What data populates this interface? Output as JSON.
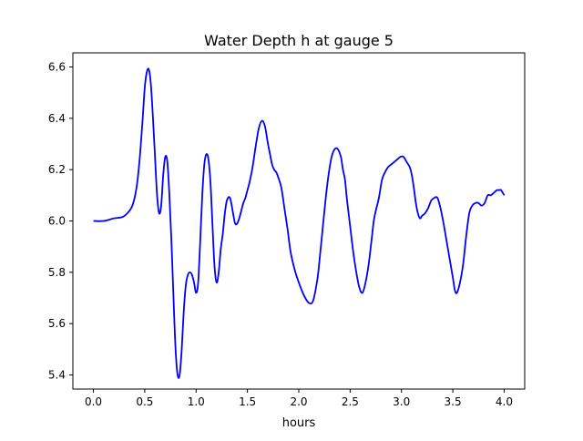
{
  "chart_data": {
    "type": "line",
    "title": "Water Depth h at gauge 5",
    "xlabel": "hours",
    "ylabel": "",
    "xlim": [
      -0.2,
      4.2
    ],
    "ylim": [
      5.345,
      6.655
    ],
    "xticks": [
      0.0,
      0.5,
      1.0,
      1.5,
      2.0,
      2.5,
      3.0,
      3.5,
      4.0
    ],
    "xtick_labels": [
      "0.0",
      "0.5",
      "1.0",
      "1.5",
      "2.0",
      "2.5",
      "3.0",
      "3.5",
      "4.0"
    ],
    "yticks": [
      5.4,
      5.6,
      5.8,
      6.0,
      6.2,
      6.4,
      6.6
    ],
    "ytick_labels": [
      "5.4",
      "5.6",
      "5.8",
      "6.0",
      "6.2",
      "6.4",
      "6.6"
    ],
    "grid": false,
    "legend": "none",
    "series": [
      {
        "color": "#0000ff",
        "x": [
          0.0,
          0.1,
          0.2,
          0.28,
          0.33,
          0.38,
          0.42,
          0.45,
          0.48,
          0.5,
          0.52,
          0.54,
          0.56,
          0.58,
          0.6,
          0.62,
          0.64,
          0.66,
          0.68,
          0.7,
          0.72,
          0.74,
          0.76,
          0.78,
          0.8,
          0.82,
          0.84,
          0.86,
          0.88,
          0.9,
          0.92,
          0.94,
          0.96,
          0.98,
          1.0,
          1.02,
          1.04,
          1.06,
          1.08,
          1.1,
          1.12,
          1.14,
          1.16,
          1.18,
          1.2,
          1.22,
          1.24,
          1.26,
          1.28,
          1.3,
          1.33,
          1.36,
          1.38,
          1.4,
          1.42,
          1.44,
          1.46,
          1.48,
          1.5,
          1.52,
          1.55,
          1.58,
          1.61,
          1.64,
          1.67,
          1.7,
          1.72,
          1.74,
          1.76,
          1.78,
          1.8,
          1.83,
          1.86,
          1.89,
          1.92,
          1.96,
          2.0,
          2.05,
          2.1,
          2.14,
          2.18,
          2.2,
          2.23,
          2.26,
          2.29,
          2.32,
          2.35,
          2.38,
          2.41,
          2.43,
          2.45,
          2.47,
          2.5,
          2.53,
          2.56,
          2.59,
          2.62,
          2.65,
          2.68,
          2.71,
          2.73,
          2.75,
          2.78,
          2.81,
          2.84,
          2.87,
          2.9,
          2.93,
          2.96,
          2.99,
          3.02,
          3.05,
          3.08,
          3.1,
          3.12,
          3.14,
          3.16,
          3.18,
          3.2,
          3.23,
          3.26,
          3.29,
          3.32,
          3.35,
          3.38,
          3.41,
          3.44,
          3.47,
          3.5,
          3.52,
          3.54,
          3.57,
          3.6,
          3.63,
          3.66,
          3.69,
          3.72,
          3.75,
          3.78,
          3.81,
          3.84,
          3.87,
          3.9,
          3.93,
          3.95,
          3.97,
          4.0
        ],
        "y": [
          6.0,
          6.0,
          6.01,
          6.015,
          6.03,
          6.06,
          6.13,
          6.24,
          6.4,
          6.52,
          6.58,
          6.59,
          6.53,
          6.4,
          6.25,
          6.1,
          6.03,
          6.06,
          6.18,
          6.25,
          6.23,
          6.1,
          5.92,
          5.7,
          5.5,
          5.4,
          5.4,
          5.5,
          5.65,
          5.75,
          5.79,
          5.8,
          5.79,
          5.76,
          5.72,
          5.76,
          5.92,
          6.1,
          6.22,
          6.26,
          6.24,
          6.15,
          5.98,
          5.82,
          5.76,
          5.8,
          5.89,
          5.95,
          6.03,
          6.08,
          6.09,
          6.03,
          5.99,
          5.99,
          6.01,
          6.04,
          6.07,
          6.09,
          6.12,
          6.15,
          6.21,
          6.29,
          6.36,
          6.39,
          6.37,
          6.3,
          6.26,
          6.22,
          6.2,
          6.19,
          6.17,
          6.13,
          6.05,
          5.97,
          5.88,
          5.81,
          5.76,
          5.71,
          5.68,
          5.69,
          5.77,
          5.84,
          5.96,
          6.08,
          6.18,
          6.25,
          6.28,
          6.28,
          6.25,
          6.2,
          6.16,
          6.08,
          5.98,
          5.88,
          5.8,
          5.74,
          5.72,
          5.76,
          5.83,
          5.93,
          6.0,
          6.04,
          6.09,
          6.16,
          6.19,
          6.21,
          6.22,
          6.23,
          6.24,
          6.25,
          6.25,
          6.23,
          6.21,
          6.18,
          6.13,
          6.07,
          6.03,
          6.01,
          6.02,
          6.03,
          6.05,
          6.08,
          6.09,
          6.09,
          6.05,
          5.99,
          5.92,
          5.85,
          5.78,
          5.73,
          5.72,
          5.76,
          5.83,
          5.94,
          6.03,
          6.06,
          6.07,
          6.07,
          6.06,
          6.07,
          6.1,
          6.1,
          6.11,
          6.12,
          6.12,
          6.12,
          6.1
        ]
      }
    ]
  }
}
